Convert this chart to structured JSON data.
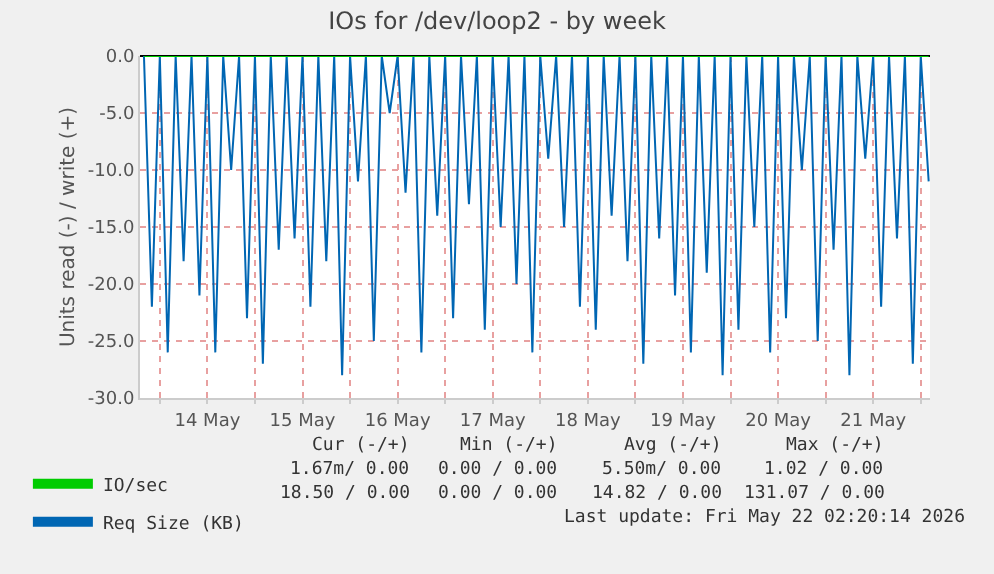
{
  "chart_data": {
    "type": "line",
    "title": "IOs for /dev/loop2 - by week",
    "ylabel": "Units read (-) / write (+)",
    "x": [
      "2026-05-13T20:00",
      "2026-05-13T22:00",
      "2026-05-14T00:00",
      "2026-05-14T02:00",
      "2026-05-14T04:00",
      "2026-05-14T06:00",
      "2026-05-14T08:00",
      "2026-05-14T10:00",
      "2026-05-14T12:00",
      "2026-05-14T14:00",
      "2026-05-14T16:00",
      "2026-05-14T18:00",
      "2026-05-14T20:00",
      "2026-05-14T22:00",
      "2026-05-15T00:00",
      "2026-05-15T02:00",
      "2026-05-15T04:00",
      "2026-05-15T06:00",
      "2026-05-15T08:00",
      "2026-05-15T10:00",
      "2026-05-15T12:00",
      "2026-05-15T14:00",
      "2026-05-15T16:00",
      "2026-05-15T18:00",
      "2026-05-15T20:00",
      "2026-05-15T22:00",
      "2026-05-16T00:00",
      "2026-05-16T02:00",
      "2026-05-16T04:00",
      "2026-05-16T06:00",
      "2026-05-16T08:00",
      "2026-05-16T10:00",
      "2026-05-16T12:00",
      "2026-05-16T14:00",
      "2026-05-16T16:00",
      "2026-05-16T18:00",
      "2026-05-16T20:00",
      "2026-05-16T22:00",
      "2026-05-17T00:00",
      "2026-05-17T02:00",
      "2026-05-17T04:00",
      "2026-05-17T06:00",
      "2026-05-17T08:00",
      "2026-05-17T10:00",
      "2026-05-17T12:00",
      "2026-05-17T14:00",
      "2026-05-17T16:00",
      "2026-05-17T18:00",
      "2026-05-17T20:00",
      "2026-05-17T22:00",
      "2026-05-18T00:00",
      "2026-05-18T02:00",
      "2026-05-18T04:00",
      "2026-05-18T06:00",
      "2026-05-18T08:00",
      "2026-05-18T10:00",
      "2026-05-18T12:00",
      "2026-05-18T14:00",
      "2026-05-18T16:00",
      "2026-05-18T18:00",
      "2026-05-18T20:00",
      "2026-05-18T22:00",
      "2026-05-19T00:00",
      "2026-05-19T02:00",
      "2026-05-19T04:00",
      "2026-05-19T06:00",
      "2026-05-19T08:00",
      "2026-05-19T10:00",
      "2026-05-19T12:00",
      "2026-05-19T14:00",
      "2026-05-19T16:00",
      "2026-05-19T18:00",
      "2026-05-19T20:00",
      "2026-05-19T22:00",
      "2026-05-20T00:00",
      "2026-05-20T02:00",
      "2026-05-20T04:00",
      "2026-05-20T06:00",
      "2026-05-20T08:00",
      "2026-05-20T10:00",
      "2026-05-20T12:00",
      "2026-05-20T14:00",
      "2026-05-20T16:00",
      "2026-05-20T18:00",
      "2026-05-20T20:00",
      "2026-05-20T22:00",
      "2026-05-21T00:00",
      "2026-05-21T02:00",
      "2026-05-21T04:00",
      "2026-05-21T06:00",
      "2026-05-21T08:00",
      "2026-05-21T10:00",
      "2026-05-21T12:00",
      "2026-05-21T14:00",
      "2026-05-21T16:00",
      "2026-05-21T18:00",
      "2026-05-21T20:00",
      "2026-05-21T22:00",
      "2026-05-22T00:00",
      "2026-05-22T02:00"
    ],
    "series": [
      {
        "name": "Req Size (KB)",
        "color": "#0066b3",
        "values": [
          0,
          -22,
          0,
          -26,
          0,
          -18,
          0,
          -21,
          0,
          -26,
          0,
          -10,
          0,
          -23,
          0,
          -27,
          0,
          -17,
          0,
          -16,
          0,
          -22,
          0,
          -18,
          0,
          -28,
          0,
          -11,
          0,
          -25,
          0,
          -5,
          0,
          -12,
          0,
          -26,
          0,
          -14,
          0,
          -23,
          0,
          -13,
          0,
          -24,
          0,
          -15,
          0,
          -20,
          0,
          -26,
          0,
          -9,
          0,
          -15,
          0,
          -22,
          0,
          -24,
          0,
          -14,
          0,
          -18,
          0,
          -27,
          0,
          -16,
          0,
          -21,
          0,
          -26,
          0,
          -19,
          0,
          -28,
          0,
          -24,
          0,
          -15,
          0,
          -26,
          0,
          -23,
          0,
          -10,
          0,
          -25,
          0,
          -17,
          0,
          -28,
          0,
          -9,
          0,
          -22,
          0,
          -16,
          0,
          -27,
          0,
          -11
        ]
      },
      {
        "name": "IO/sec",
        "color": "#00cc00",
        "x": [
          "2026-05-13T20:00",
          "2026-05-22T02:00"
        ],
        "values": [
          0,
          0
        ]
      }
    ],
    "xlim": [
      "2026-05-13T19:00",
      "2026-05-22T02:20"
    ],
    "xticks": [
      {
        "value": "2026-05-14T00:00",
        "label": null
      },
      {
        "value": "2026-05-14T12:00",
        "label": "14 May"
      },
      {
        "value": "2026-05-15T00:00",
        "label": null
      },
      {
        "value": "2026-05-15T12:00",
        "label": "15 May"
      },
      {
        "value": "2026-05-16T00:00",
        "label": null
      },
      {
        "value": "2026-05-16T12:00",
        "label": "16 May"
      },
      {
        "value": "2026-05-17T00:00",
        "label": null
      },
      {
        "value": "2026-05-17T12:00",
        "label": "17 May"
      },
      {
        "value": "2026-05-18T00:00",
        "label": null
      },
      {
        "value": "2026-05-18T12:00",
        "label": "18 May"
      },
      {
        "value": "2026-05-19T00:00",
        "label": null
      },
      {
        "value": "2026-05-19T12:00",
        "label": "19 May"
      },
      {
        "value": "2026-05-20T00:00",
        "label": null
      },
      {
        "value": "2026-05-20T12:00",
        "label": "20 May"
      },
      {
        "value": "2026-05-21T00:00",
        "label": null
      },
      {
        "value": "2026-05-21T12:00",
        "label": "21 May"
      },
      {
        "value": "2026-05-22T00:00",
        "label": null
      }
    ],
    "ylim": [
      -30,
      0
    ],
    "yticks": [
      {
        "value": -30,
        "label": "-30.0"
      },
      {
        "value": -25,
        "label": "-25.0"
      },
      {
        "value": -20,
        "label": "-20.0"
      },
      {
        "value": -15,
        "label": "-15.0"
      },
      {
        "value": -10,
        "label": "-10.0"
      },
      {
        "value": -5,
        "label": "-5.0"
      },
      {
        "value": 0,
        "label": "0.0"
      }
    ],
    "grid": true,
    "legend": "bottom left",
    "marker": "none",
    "line_style": "solid",
    "annotations": [
      "Cur (-/+)",
      "Min (-/+)",
      "Avg (-/+)",
      "Max (-/+)",
      "1.67m/ 0.00",
      "0.00 / 0.00",
      "5.50m/ 0.00",
      "1.02 / 0.00",
      "18.50 / 0.00",
      "0.00 / 0.00",
      "14.82 / 0.00",
      "131.07 / 0.00",
      "Last update: Fri May 22 02:20:14 2026"
    ]
  }
}
